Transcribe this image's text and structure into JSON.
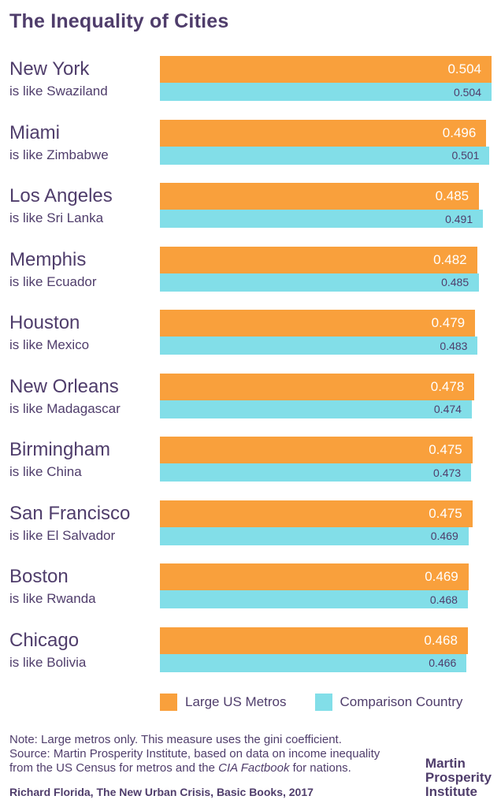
{
  "title": "The Inequality of Cities",
  "colors": {
    "metro_bar": "#F9A03C",
    "country_bar": "#82DEE8",
    "text_purple": "#4F3D6B",
    "value_on_metro_bar": "#FFFFFF",
    "background": "#FFFFFF"
  },
  "chart_data": {
    "type": "bar",
    "orientation": "horizontal",
    "title": "The Inequality of Cities",
    "xlabel": "",
    "ylabel": "",
    "xlim": [
      0,
      0.504
    ],
    "grid": false,
    "legend_position": "bottom",
    "series_names": [
      "Large US Metros",
      "Comparison Country"
    ],
    "rows": [
      {
        "city": "New York",
        "comparison": "is like Swaziland",
        "metro_value": 0.504,
        "country_value": 0.504
      },
      {
        "city": "Miami",
        "comparison": "is like Zimbabwe",
        "metro_value": 0.496,
        "country_value": 0.501
      },
      {
        "city": "Los Angeles",
        "comparison": "is like Sri Lanka",
        "metro_value": 0.485,
        "country_value": 0.491
      },
      {
        "city": "Memphis",
        "comparison": "is like Ecuador",
        "metro_value": 0.482,
        "country_value": 0.485
      },
      {
        "city": "Houston",
        "comparison": "is like Mexico",
        "metro_value": 0.479,
        "country_value": 0.483
      },
      {
        "city": "New Orleans",
        "comparison": "is like Madagascar",
        "metro_value": 0.478,
        "country_value": 0.474
      },
      {
        "city": "Birmingham",
        "comparison": "is like China",
        "metro_value": 0.475,
        "country_value": 0.473
      },
      {
        "city": "San Francisco",
        "comparison": "is like El Salvador",
        "metro_value": 0.475,
        "country_value": 0.469
      },
      {
        "city": "Boston",
        "comparison": "is like Rwanda",
        "metro_value": 0.469,
        "country_value": 0.468
      },
      {
        "city": "Chicago",
        "comparison": "is like Bolivia",
        "metro_value": 0.468,
        "country_value": 0.466
      }
    ]
  },
  "legend": {
    "metros_label": "Large US Metros",
    "country_label": "Comparison Country"
  },
  "footer": {
    "note_line": "Note: Large metros only. This measure uses the gini coefficient.",
    "source_line1": "Source: Martin Prosperity Institute, based on data on income inequality",
    "source_line2_pre": "from the US Census for metros and the ",
    "source_line2_italic": "CIA Factbook",
    "source_line2_post": " for nations.",
    "attribution": "Richard Florida, The New Urban Crisis, Basic Books, 2017"
  },
  "logo": {
    "line1": "Martin",
    "line2": "Prosperity",
    "line3": "Institute"
  }
}
